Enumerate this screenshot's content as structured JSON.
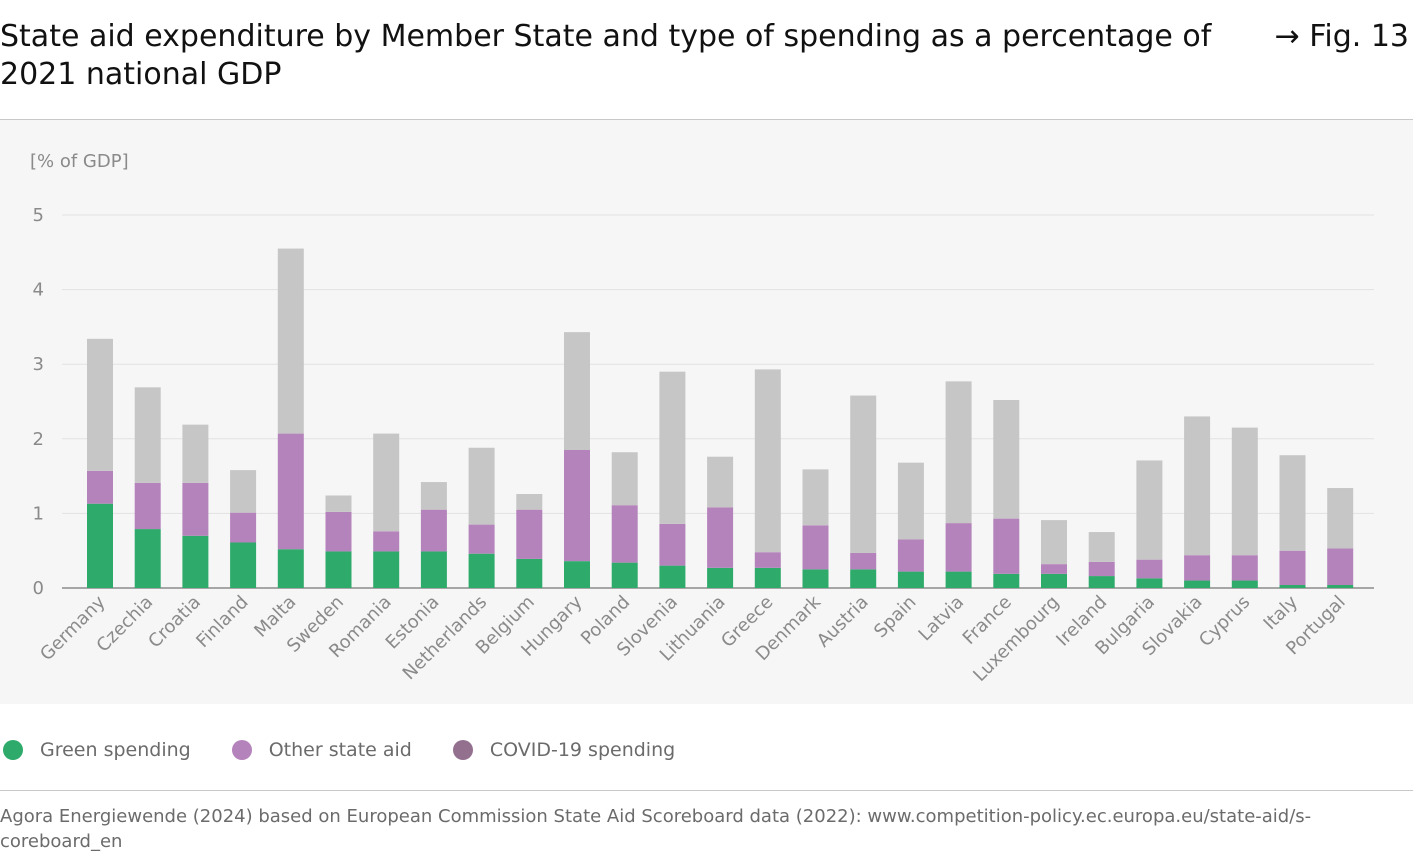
{
  "header": {
    "title": "State aid expenditure by Member State and type of spending as a percentage of 2021 national GDP",
    "fig_ref": "→ Fig. 13"
  },
  "source": "Agora Energiewende (2024) based on European Commission State Aid Scoreboard data (2022): www.competition-policy.ec.europa.eu/state-aid/s-coreboard_en",
  "colors": {
    "green": "#2eaa6a",
    "other": "#b583bb",
    "covid": "#c6c6c6",
    "covid_legend": "#94708f",
    "grid": "#e2e2e2",
    "axis_text": "#8a8a8a"
  },
  "legend": [
    {
      "label": "Green spending",
      "color": "#2eaa6a"
    },
    {
      "label": "Other state aid",
      "color": "#b583bb"
    },
    {
      "label": "COVID-19 spending",
      "color": "#94708f"
    }
  ],
  "chart_data": {
    "type": "bar",
    "stacked": true,
    "ylabel": "[% of GDP]",
    "ylim": [
      0,
      5
    ],
    "yticks": [
      0,
      1,
      2,
      3,
      4,
      5
    ],
    "grid": true,
    "legend_position": "bottom-left",
    "categories": [
      "Germany",
      "Czechia",
      "Croatia",
      "Finland",
      "Malta",
      "Sweden",
      "Romania",
      "Estonia",
      "Netherlands",
      "Belgium",
      "Hungary",
      "Poland",
      "Slovenia",
      "Lithuania",
      "Greece",
      "Denmark",
      "Austria",
      "Spain",
      "Latvia",
      "France",
      "Luxembourg",
      "Ireland",
      "Bulgaria",
      "Slovakia",
      "Cyprus",
      "Italy",
      "Portugal"
    ],
    "series": [
      {
        "name": "Green spending",
        "values": [
          1.13,
          0.79,
          0.7,
          0.61,
          0.52,
          0.49,
          0.49,
          0.49,
          0.46,
          0.39,
          0.36,
          0.34,
          0.3,
          0.27,
          0.27,
          0.25,
          0.25,
          0.22,
          0.22,
          0.19,
          0.19,
          0.16,
          0.13,
          0.1,
          0.1,
          0.04,
          0.04
        ]
      },
      {
        "name": "Other state aid",
        "values": [
          0.44,
          0.62,
          0.71,
          0.4,
          1.55,
          0.53,
          0.27,
          0.56,
          0.39,
          0.66,
          1.49,
          0.77,
          0.56,
          0.81,
          0.21,
          0.59,
          0.22,
          0.43,
          0.65,
          0.74,
          0.13,
          0.19,
          0.25,
          0.34,
          0.34,
          0.46,
          0.49
        ]
      },
      {
        "name": "COVID-19 spending",
        "values": [
          1.77,
          1.28,
          0.78,
          0.57,
          2.48,
          0.22,
          1.31,
          0.37,
          1.03,
          0.21,
          1.58,
          0.71,
          2.04,
          0.68,
          2.45,
          0.75,
          2.11,
          1.03,
          1.9,
          1.59,
          0.59,
          0.4,
          1.33,
          1.86,
          1.71,
          1.28,
          0.81
        ]
      }
    ]
  }
}
